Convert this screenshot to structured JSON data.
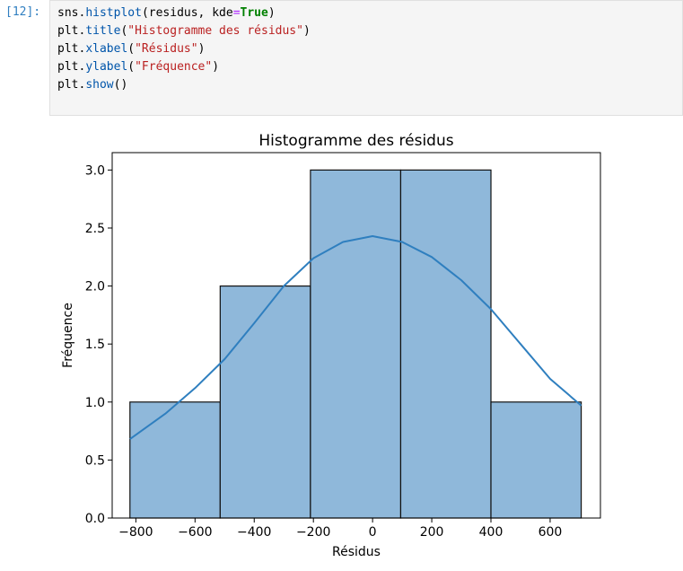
{
  "cell": {
    "prompt": "[12]:",
    "code_lines": [
      [
        {
          "t": "sns.",
          "c": ""
        },
        {
          "t": "histplot",
          "c": "fn"
        },
        {
          "t": "(residus, kde",
          "c": ""
        },
        {
          "t": "=",
          "c": "eq"
        },
        {
          "t": "True",
          "c": "kw"
        },
        {
          "t": ")",
          "c": ""
        }
      ],
      [
        {
          "t": "plt.",
          "c": ""
        },
        {
          "t": "title",
          "c": "fn"
        },
        {
          "t": "(",
          "c": ""
        },
        {
          "t": "\"Histogramme des résidus\"",
          "c": "str"
        },
        {
          "t": ")",
          "c": ""
        }
      ],
      [
        {
          "t": "plt.",
          "c": ""
        },
        {
          "t": "xlabel",
          "c": "fn"
        },
        {
          "t": "(",
          "c": ""
        },
        {
          "t": "\"Résidus\"",
          "c": "str"
        },
        {
          "t": ")",
          "c": ""
        }
      ],
      [
        {
          "t": "plt.",
          "c": ""
        },
        {
          "t": "ylabel",
          "c": "fn"
        },
        {
          "t": "(",
          "c": ""
        },
        {
          "t": "\"Fréquence\"",
          "c": "str"
        },
        {
          "t": ")",
          "c": ""
        }
      ],
      [
        {
          "t": "plt.",
          "c": ""
        },
        {
          "t": "show",
          "c": "fn"
        },
        {
          "t": "()",
          "c": ""
        }
      ]
    ]
  },
  "chart_data": {
    "type": "bar",
    "title": "Histogramme des résidus",
    "xlabel": "Résidus",
    "ylabel": "Fréquence",
    "bins": [
      {
        "x0": -820,
        "x1": -515,
        "count": 1
      },
      {
        "x0": -515,
        "x1": -210,
        "count": 2
      },
      {
        "x0": -210,
        "x1": 95,
        "count": 3
      },
      {
        "x0": 95,
        "x1": 400,
        "count": 3
      },
      {
        "x0": 400,
        "x1": 705,
        "count": 1
      }
    ],
    "kde": {
      "x": [
        -820,
        -700,
        -600,
        -500,
        -400,
        -300,
        -200,
        -100,
        0,
        100,
        200,
        300,
        400,
        500,
        600,
        705
      ],
      "y": [
        0.68,
        0.9,
        1.12,
        1.37,
        1.68,
        2.0,
        2.24,
        2.38,
        2.43,
        2.38,
        2.25,
        2.05,
        1.8,
        1.5,
        1.2,
        0.97
      ]
    },
    "xlim": [
      -880,
      770
    ],
    "ylim": [
      0,
      3.15
    ],
    "xticks": [
      -800,
      -600,
      -400,
      -200,
      0,
      200,
      400,
      600
    ],
    "xtick_labels": [
      "−800",
      "−600",
      "−400",
      "−200",
      "0",
      "200",
      "400",
      "600"
    ],
    "yticks": [
      0,
      0.5,
      1.0,
      1.5,
      2.0,
      2.5,
      3.0
    ],
    "ytick_labels": [
      "0.0",
      "0.5",
      "1.0",
      "1.5",
      "2.0",
      "2.5",
      "3.0"
    ],
    "bar_color": "#8fb8da",
    "bar_edge": "#111111",
    "kde_color": "#2f7fbf"
  }
}
